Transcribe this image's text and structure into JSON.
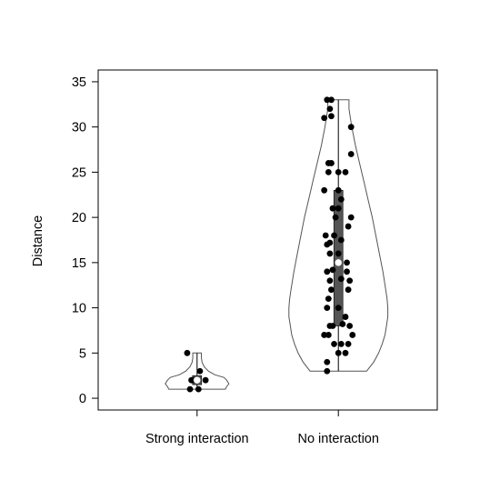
{
  "chart_data": {
    "type": "violin",
    "title": "",
    "xlabel": "",
    "ylabel": "Distance",
    "ylim": [
      -1.3,
      36.3
    ],
    "yticks": [
      0,
      5,
      10,
      15,
      20,
      25,
      30,
      35
    ],
    "categories": [
      "Strong interaction",
      "No interaction"
    ],
    "colors": {
      "outline": "#555555",
      "points": "#000000",
      "box": "#555555",
      "median": "#ffffff"
    },
    "groups": [
      {
        "name": "Strong interaction",
        "min": 1,
        "max": 5,
        "q1": 1.5,
        "median": 2,
        "q3": 2.5,
        "density": [
          [
            1,
            0.4
          ],
          [
            1.3,
            0.42
          ],
          [
            1.6,
            0.45
          ],
          [
            2.0,
            0.42
          ],
          [
            2.3,
            0.38
          ],
          [
            2.6,
            0.25
          ],
          [
            3.0,
            0.16
          ],
          [
            3.5,
            0.1
          ],
          [
            4.0,
            0.07
          ],
          [
            4.5,
            0.06
          ],
          [
            5,
            0.06
          ]
        ],
        "points": [
          [
            -0.07,
            5
          ],
          [
            -0.04,
            2
          ],
          [
            0.02,
            3
          ],
          [
            -0.02,
            2
          ],
          [
            0.06,
            2
          ],
          [
            0.01,
            1
          ],
          [
            -0.05,
            1
          ]
        ]
      },
      {
        "name": "No interaction",
        "min": 3,
        "max": 33,
        "q1": 8,
        "median": 15,
        "q3": 23,
        "density": [
          [
            3,
            0.4
          ],
          [
            4,
            0.5
          ],
          [
            5,
            0.57
          ],
          [
            6,
            0.62
          ],
          [
            7,
            0.66
          ],
          [
            8,
            0.68
          ],
          [
            9,
            0.7
          ],
          [
            10,
            0.7
          ],
          [
            11,
            0.69
          ],
          [
            12,
            0.67
          ],
          [
            14,
            0.63
          ],
          [
            16,
            0.58
          ],
          [
            18,
            0.53
          ],
          [
            20,
            0.48
          ],
          [
            22,
            0.42
          ],
          [
            24,
            0.36
          ],
          [
            26,
            0.3
          ],
          [
            28,
            0.24
          ],
          [
            30,
            0.19
          ],
          [
            31,
            0.17
          ],
          [
            32,
            0.15
          ],
          [
            33,
            0.15
          ]
        ],
        "points": [
          [
            -0.08,
            33
          ],
          [
            -0.05,
            33
          ],
          [
            -0.06,
            32
          ],
          [
            -0.1,
            31
          ],
          [
            -0.05,
            31.2
          ],
          [
            0.09,
            30
          ],
          [
            0.09,
            27
          ],
          [
            -0.07,
            26
          ],
          [
            -0.05,
            26
          ],
          [
            -0.07,
            25
          ],
          [
            0.0,
            25
          ],
          [
            0.05,
            25
          ],
          [
            0.0,
            23
          ],
          [
            -0.1,
            23
          ],
          [
            0.02,
            22
          ],
          [
            -0.04,
            21
          ],
          [
            0.0,
            21
          ],
          [
            0.09,
            20
          ],
          [
            -0.02,
            20
          ],
          [
            0.07,
            19
          ],
          [
            -0.09,
            18
          ],
          [
            -0.03,
            18
          ],
          [
            0.02,
            17.5
          ],
          [
            -0.08,
            17
          ],
          [
            -0.06,
            17.2
          ],
          [
            0.0,
            16
          ],
          [
            -0.06,
            16
          ],
          [
            0.06,
            15
          ],
          [
            0.06,
            14
          ],
          [
            -0.08,
            14
          ],
          [
            -0.04,
            14.2
          ],
          [
            0.08,
            13
          ],
          [
            -0.06,
            13
          ],
          [
            0.02,
            13.2
          ],
          [
            0.07,
            12
          ],
          [
            -0.05,
            12
          ],
          [
            -0.07,
            11
          ],
          [
            0.0,
            10
          ],
          [
            -0.08,
            10
          ],
          [
            -0.06,
            8
          ],
          [
            -0.04,
            8
          ],
          [
            0.05,
            9
          ],
          [
            0.03,
            8.2
          ],
          [
            0.08,
            8
          ],
          [
            0.1,
            7
          ],
          [
            -0.1,
            7
          ],
          [
            -0.07,
            7
          ],
          [
            -0.03,
            6
          ],
          [
            0.02,
            6
          ],
          [
            0.07,
            6
          ],
          [
            0.0,
            5
          ],
          [
            0.05,
            5
          ],
          [
            -0.08,
            4
          ],
          [
            -0.08,
            3
          ]
        ]
      }
    ]
  }
}
